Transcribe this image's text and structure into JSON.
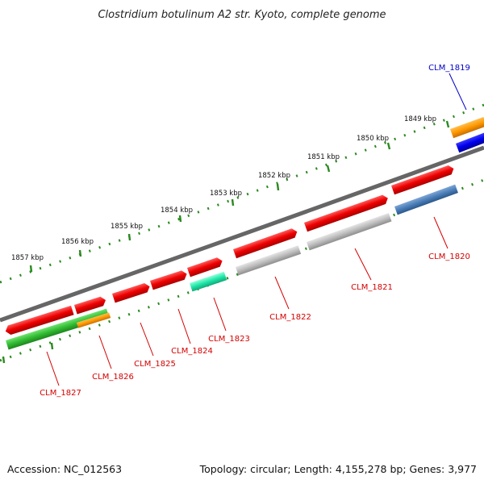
{
  "title": "Clostridium botulinum A2 str. Kyoto, complete genome",
  "footer": {
    "accession": "Accession: NC_012563",
    "summary": "Topology: circular; Length: 4,155,278 bp; Genes: 3,977"
  },
  "colors": {
    "backbone": "#777777",
    "ticks": "#2a8a1e",
    "label_red": "#d40000",
    "label_blue": "#0000c8"
  },
  "tick_labels": [
    "1849 kbp",
    "1850 kbp",
    "1851 kbp",
    "1852 kbp",
    "1853 kbp",
    "1854 kbp",
    "1855 kbp",
    "1856 kbp",
    "1857 kbp"
  ],
  "genes": [
    {
      "id": "CLM_1819",
      "label": "CLM_1819",
      "color": "blue"
    },
    {
      "id": "CLM_1820",
      "label": "CLM_1820",
      "color": "red"
    },
    {
      "id": "CLM_1821",
      "label": "CLM_1821",
      "color": "red"
    },
    {
      "id": "CLM_1822",
      "label": "CLM_1822",
      "color": "red"
    },
    {
      "id": "CLM_1823",
      "label": "CLM_1823",
      "color": "red"
    },
    {
      "id": "CLM_1824",
      "label": "CLM_1824",
      "color": "red"
    },
    {
      "id": "CLM_1825",
      "label": "CLM_1825",
      "color": "red"
    },
    {
      "id": "CLM_1826",
      "label": "CLM_1826",
      "color": "red"
    },
    {
      "id": "CLM_1827",
      "label": "CLM_1827",
      "color": "red"
    }
  ]
}
